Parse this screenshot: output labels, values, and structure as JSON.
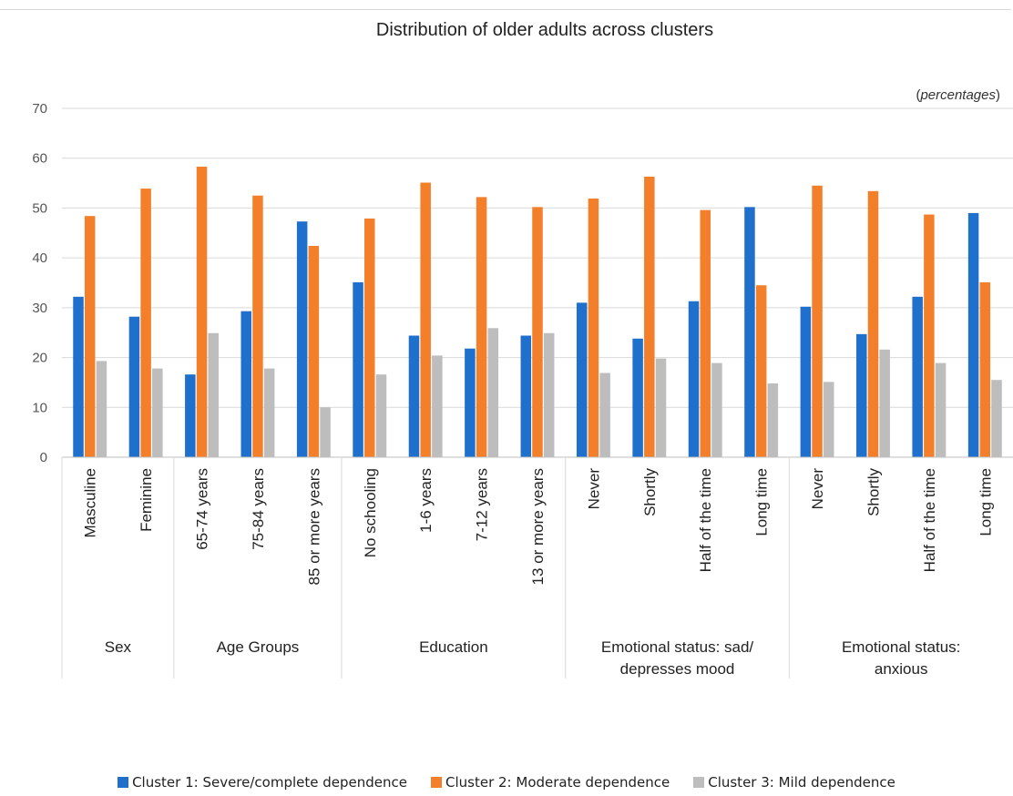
{
  "chart_data": {
    "type": "bar",
    "title": "Distribution of older adults across clusters",
    "unit_note_prefix": "(",
    "unit_note_italic": "percentages",
    "unit_note_suffix": ")",
    "ylim": [
      0,
      70
    ],
    "yticks": [
      0,
      10,
      20,
      30,
      40,
      50,
      60,
      70
    ],
    "grid": true,
    "legend_position": "bottom",
    "categories": [
      "Masculine",
      "Feminine",
      "65-74 years",
      "75-84 years",
      "85 or more years",
      "No schooling",
      "1-6 years",
      "7-12 years",
      "13 or more years",
      "Never",
      "Shortly",
      "Half of the time",
      "Long time",
      "Never",
      "Shortly",
      "Half of the time",
      "Long time"
    ],
    "groups": [
      {
        "label": [
          "Sex"
        ],
        "count": 2
      },
      {
        "label": [
          "Age Groups"
        ],
        "count": 3
      },
      {
        "label": [
          "Education"
        ],
        "count": 4
      },
      {
        "label": [
          "Emotional status: sad/",
          "depresses mood"
        ],
        "count": 4
      },
      {
        "label": [
          "Emotional status:",
          "anxious"
        ],
        "count": 4
      }
    ],
    "series": [
      {
        "name": "Cluster 1: Severe/complete dependence",
        "color": "#1f6fcc",
        "values": [
          32.2,
          28.2,
          16.6,
          29.3,
          47.3,
          35.1,
          24.4,
          21.8,
          24.4,
          31.0,
          23.8,
          31.3,
          50.2,
          30.2,
          24.7,
          32.2,
          49.0
        ]
      },
      {
        "name": "Cluster 2: Moderate dependence",
        "color": "#f47f2a",
        "values": [
          48.4,
          53.9,
          58.3,
          52.5,
          42.4,
          47.9,
          55.1,
          52.2,
          50.2,
          51.9,
          56.3,
          49.6,
          34.5,
          54.5,
          53.4,
          48.7,
          35.1
        ]
      },
      {
        "name": "Cluster 3: Mild dependence",
        "color": "#bdbdbd",
        "values": [
          19.3,
          17.8,
          24.9,
          17.8,
          10.0,
          16.6,
          20.4,
          25.9,
          24.9,
          16.9,
          19.8,
          18.9,
          14.8,
          15.1,
          21.6,
          18.9,
          15.5
        ]
      }
    ]
  }
}
